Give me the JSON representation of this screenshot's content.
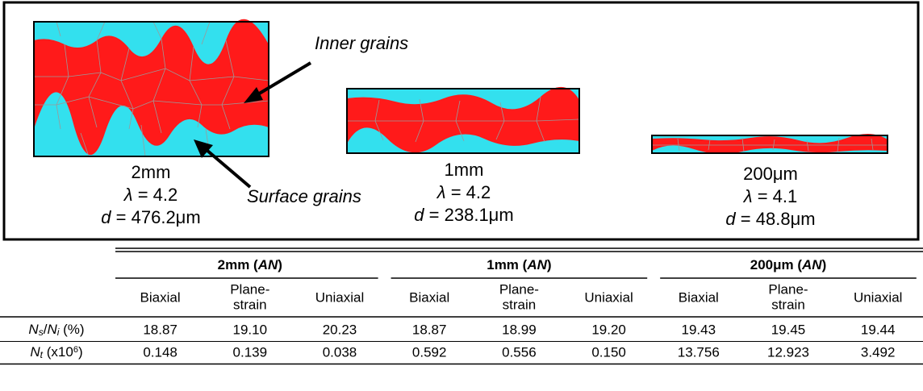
{
  "figure": {
    "callouts": {
      "inner": "Inner grains",
      "surface": "Surface grains"
    },
    "specimens": [
      {
        "size": "2mm",
        "lines": [
          [
            {
              "text": "λ",
              "style": "italic"
            },
            {
              "text": " = 4.2"
            }
          ],
          [
            {
              "text": "d",
              "style": "italic"
            },
            {
              "text": " = 476.2μm"
            }
          ]
        ]
      },
      {
        "size": "1mm",
        "lines": [
          [
            {
              "text": "λ",
              "style": "italic"
            },
            {
              "text": " = 4.2"
            }
          ],
          [
            {
              "text": "d",
              "style": "italic"
            },
            {
              "text": " = 238.1μm"
            }
          ]
        ]
      },
      {
        "size": "200μm",
        "lines": [
          [
            {
              "text": "λ",
              "style": "italic"
            },
            {
              "text": " = 4.1"
            }
          ],
          [
            {
              "text": "d",
              "style": "italic"
            },
            {
              "text": " = 48.8μm"
            }
          ]
        ]
      }
    ]
  },
  "table": {
    "groups": [
      [
        {
          "text": "2mm ("
        },
        {
          "text": "AN",
          "style": "italic"
        },
        {
          "text": ")"
        }
      ],
      [
        {
          "text": "1mm ("
        },
        {
          "text": "AN",
          "style": "italic"
        },
        {
          "text": ")"
        }
      ],
      [
        {
          "text": "200μm ("
        },
        {
          "text": "AN",
          "style": "italic"
        },
        {
          "text": ")"
        }
      ]
    ],
    "columns": [
      [
        "Biaxial"
      ],
      [
        "Plane-",
        "strain"
      ],
      [
        "Uniaxial"
      ],
      [
        "Biaxial"
      ],
      [
        "Plane-",
        "strain"
      ],
      [
        "Uniaxial"
      ],
      [
        "Biaxial"
      ],
      [
        "Plane-",
        "strain"
      ],
      [
        "Uniaxial"
      ]
    ],
    "rows": [
      {
        "label": [
          {
            "text": "N",
            "style": "italic"
          },
          {
            "text": "s",
            "style": "italic-sub"
          },
          {
            "text": "/"
          },
          {
            "text": "N",
            "style": "italic"
          },
          {
            "text": "i",
            "style": "italic-sub"
          },
          {
            "text": " (%)"
          }
        ],
        "cells": [
          "18.87",
          "19.10",
          "20.23",
          "18.87",
          "18.99",
          "19.20",
          "19.43",
          "19.45",
          "19.44"
        ]
      },
      {
        "label": [
          {
            "text": "N",
            "style": "italic"
          },
          {
            "text": "t",
            "style": "italic-sub"
          },
          {
            "text": " (x10"
          },
          {
            "text": "6",
            "style": "sup"
          },
          {
            "text": ")"
          }
        ],
        "cells": [
          "0.148",
          "0.139",
          "0.038",
          "0.592",
          "0.556",
          "0.150",
          "13.756",
          "12.923",
          "3.492"
        ]
      }
    ]
  }
}
